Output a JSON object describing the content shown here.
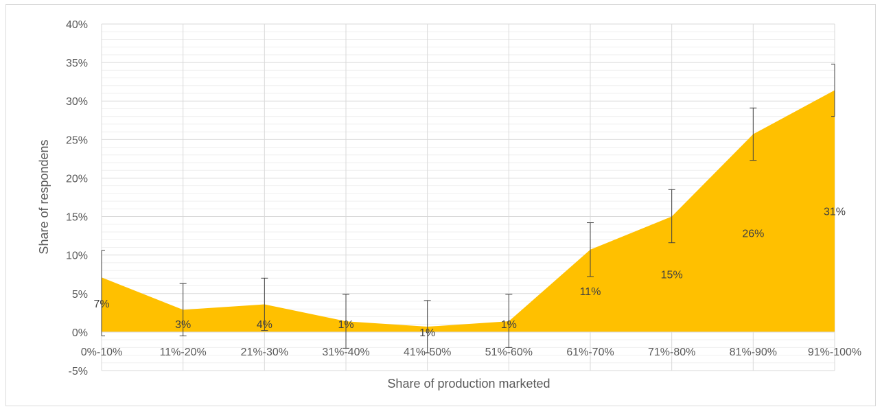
{
  "chart_data": {
    "type": "area",
    "title": "",
    "xlabel": "Share of production marketed",
    "ylabel": "Share of respondens",
    "ylim": [
      -5,
      40
    ],
    "yticks": [
      -5,
      0,
      5,
      10,
      15,
      20,
      25,
      30,
      35,
      40
    ],
    "ytick_labels": [
      "-5%",
      "0%",
      "5%",
      "10%",
      "15%",
      "20%",
      "25%",
      "30%",
      "35%",
      "40%"
    ],
    "grid": true,
    "legend": "none",
    "categories": [
      "0%-10%",
      "11%-20%",
      "21%-30%",
      "31%-40%",
      "41%-50%",
      "51%-60%",
      "61%-70%",
      "71%-80%",
      "81%-90%",
      "91%-100%"
    ],
    "series": [
      {
        "values": [
          7.1,
          2.9,
          3.6,
          1.4,
          0.7,
          1.4,
          10.7,
          15.0,
          25.7,
          31.4
        ],
        "data_labels": [
          "7%",
          "3%",
          "4%",
          "1%",
          "1%",
          "1%",
          "11%",
          "15%",
          "26%",
          "31%"
        ],
        "error_bars": [
          [
            -0.5,
            10.6
          ],
          [
            -0.5,
            6.3
          ],
          [
            0.2,
            7.0
          ],
          [
            -2.1,
            4.9
          ],
          [
            -2.7,
            4.1
          ],
          [
            -2.0,
            4.9
          ],
          [
            7.2,
            14.2
          ],
          [
            11.6,
            18.5
          ],
          [
            22.3,
            29.1
          ],
          [
            28.0,
            34.8
          ]
        ],
        "color": "#FFC000"
      }
    ],
    "colors": {
      "area": "#FFC000",
      "major_grid": "#d9d9d9",
      "minor_grid": "#efefef",
      "error_bar": "#404040",
      "text": "#595959"
    }
  }
}
